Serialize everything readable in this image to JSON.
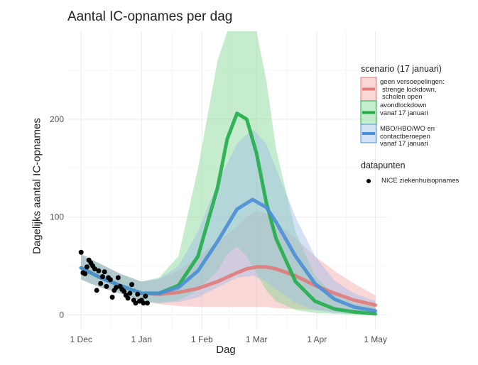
{
  "chart_data": {
    "type": "line",
    "title": "Aantal IC-opnames per dag",
    "xlabel": "Dag",
    "ylabel": "Dagelijks aantal IC-opnames",
    "x_ticks": [
      {
        "label": "1 Dec",
        "day": 0
      },
      {
        "label": "1 Jan",
        "day": 31
      },
      {
        "label": "1 Feb",
        "day": 62
      },
      {
        "label": "1 Mar",
        "day": 90
      },
      {
        "label": "1 Apr",
        "day": 121
      },
      {
        "label": "1 May",
        "day": 151
      }
    ],
    "y_ticks": [
      0,
      100,
      200
    ],
    "xlim_days": [
      -7,
      157
    ],
    "ylim": [
      -15,
      290
    ],
    "grid": true,
    "legend_placement": "right",
    "legend": {
      "scenario_title": "scenario (17 januari)",
      "points_title": "datapunten"
    },
    "series": [
      {
        "name": "geen versoepelingen: strenge lockdown, scholen open",
        "label_lines": [
          "geen versoepelingen:",
          "strenge lockdown,",
          "scholen open"
        ],
        "color": "#e07b7b",
        "band_color": "#f4a6a6",
        "x": [
          0,
          10,
          20,
          31,
          40,
          50,
          60,
          70,
          80,
          85,
          90,
          95,
          100,
          110,
          120,
          130,
          140,
          151
        ],
        "y": [
          48,
          38,
          30,
          22,
          21,
          23,
          27,
          34,
          43,
          47,
          49,
          49,
          47,
          40,
          30,
          22,
          15,
          10
        ],
        "lower": [
          36,
          28,
          22,
          14,
          11,
          9,
          8,
          8,
          8,
          8,
          8,
          8,
          7,
          6,
          5,
          4,
          3,
          2
        ],
        "upper": [
          62,
          52,
          42,
          34,
          36,
          45,
          60,
          75,
          90,
          100,
          106,
          104,
          95,
          78,
          60,
          45,
          32,
          20
        ]
      },
      {
        "name": "avondlockdown vanaf 17 januari",
        "label_lines": [
          "avondlockdown",
          "vanaf 17 januari"
        ],
        "color": "#22ad4a",
        "band_color": "#7fd48f",
        "x": [
          0,
          10,
          20,
          31,
          40,
          50,
          60,
          70,
          75,
          80,
          85,
          90,
          95,
          100,
          110,
          120,
          130,
          140,
          151
        ],
        "y": [
          48,
          38,
          30,
          22,
          22,
          30,
          60,
          130,
          180,
          206,
          200,
          165,
          115,
          78,
          34,
          14,
          6,
          3,
          1
        ],
        "lower": [
          36,
          28,
          22,
          14,
          12,
          15,
          25,
          45,
          62,
          70,
          60,
          42,
          25,
          14,
          5,
          2,
          1,
          0,
          0
        ],
        "upper": [
          62,
          52,
          42,
          34,
          38,
          60,
          150,
          260,
          310,
          330,
          330,
          300,
          240,
          170,
          85,
          40,
          20,
          12,
          8
        ]
      },
      {
        "name": "MBO/HBO/WO en contactberoepen vanaf 17 januari",
        "label_lines": [
          "MBO/HBO/WO en",
          "contactberoepen",
          "vanaf 17 januari"
        ],
        "color": "#4b8fd6",
        "band_color": "#9dbde8",
        "x": [
          0,
          10,
          20,
          31,
          40,
          50,
          60,
          70,
          80,
          88,
          95,
          100,
          110,
          120,
          130,
          140,
          151
        ],
        "y": [
          48,
          38,
          30,
          22,
          22,
          28,
          45,
          75,
          108,
          118,
          110,
          95,
          60,
          32,
          16,
          8,
          4
        ],
        "lower": [
          36,
          28,
          22,
          14,
          12,
          13,
          18,
          28,
          38,
          40,
          34,
          26,
          12,
          5,
          2,
          1,
          0
        ],
        "upper": [
          62,
          52,
          42,
          34,
          37,
          50,
          85,
          135,
          175,
          190,
          175,
          150,
          100,
          60,
          35,
          22,
          14
        ]
      }
    ],
    "points": {
      "name": "NICE ziekenhuisopnames",
      "color": "#000000",
      "x": [
        0,
        1,
        2,
        3,
        4,
        5,
        6,
        7,
        8,
        9,
        10,
        11,
        12,
        13,
        14,
        15,
        16,
        17,
        18,
        19,
        20,
        21,
        22,
        23,
        24,
        25,
        26,
        27,
        28,
        29,
        30,
        31,
        32,
        33,
        34
      ],
      "y": [
        64,
        43,
        42,
        49,
        56,
        53,
        50,
        47,
        25,
        45,
        32,
        39,
        44,
        29,
        38,
        36,
        18,
        25,
        28,
        38,
        29,
        26,
        24,
        20,
        17,
        22,
        31,
        15,
        12,
        21,
        14,
        15,
        12,
        19,
        12
      ]
    }
  }
}
